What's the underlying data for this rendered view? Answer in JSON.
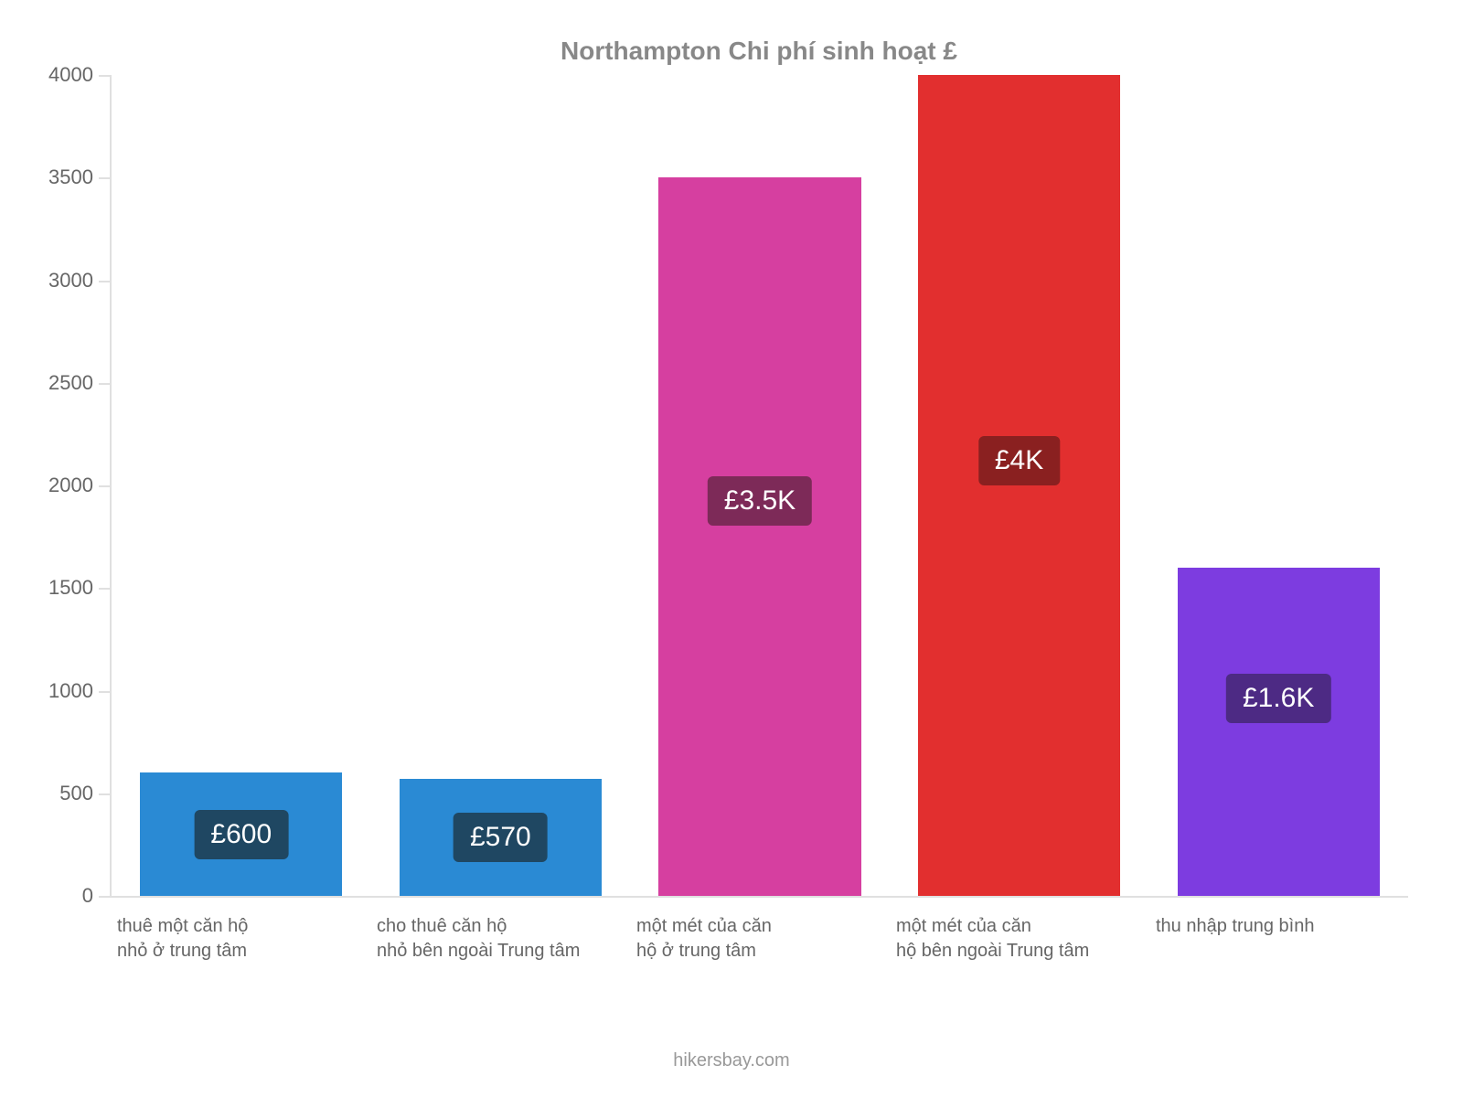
{
  "chart": {
    "type": "bar",
    "title": "Northampton Chi phí sinh hoạt £",
    "title_color": "#888888",
    "title_fontsize": 28,
    "background_color": "#ffffff",
    "axis_color": "#e0e0e0",
    "tick_label_color": "#666666",
    "tick_label_fontsize": 22,
    "xlabel_fontsize": 20,
    "ylim_min": 0,
    "ylim_max": 4000,
    "ytick_step": 500,
    "bar_width_pct": 78,
    "categories": [
      {
        "label_line1": "thuê một căn hộ",
        "label_line2": "nhỏ ở trung tâm"
      },
      {
        "label_line1": "cho thuê căn hộ",
        "label_line2": "nhỏ bên ngoài Trung tâm"
      },
      {
        "label_line1": "một mét của căn",
        "label_line2": "hộ ở trung tâm"
      },
      {
        "label_line1": "một mét của căn",
        "label_line2": "hộ bên ngoài Trung tâm"
      },
      {
        "label_line1": "thu nhập trung bình",
        "label_line2": ""
      }
    ],
    "series": [
      {
        "value": 600,
        "display": "£600",
        "bar_color": "#2a8ad4",
        "badge_bg": "#1f4762",
        "badge_top_pct": 50
      },
      {
        "value": 570,
        "display": "£570",
        "bar_color": "#2a8ad4",
        "badge_bg": "#1f4762",
        "badge_top_pct": 50
      },
      {
        "value": 3500,
        "display": "£3.5K",
        "bar_color": "#d63fa0",
        "badge_bg": "#7d2a58",
        "badge_top_pct": 45
      },
      {
        "value": 4000,
        "display": "£4K",
        "bar_color": "#e22f2f",
        "badge_bg": "#8a2020",
        "badge_top_pct": 47
      },
      {
        "value": 1600,
        "display": "£1.6K",
        "bar_color": "#7d3ce0",
        "badge_bg": "#4d2a84",
        "badge_top_pct": 40
      }
    ],
    "footer": "hikersbay.com",
    "footer_color": "#999999"
  }
}
